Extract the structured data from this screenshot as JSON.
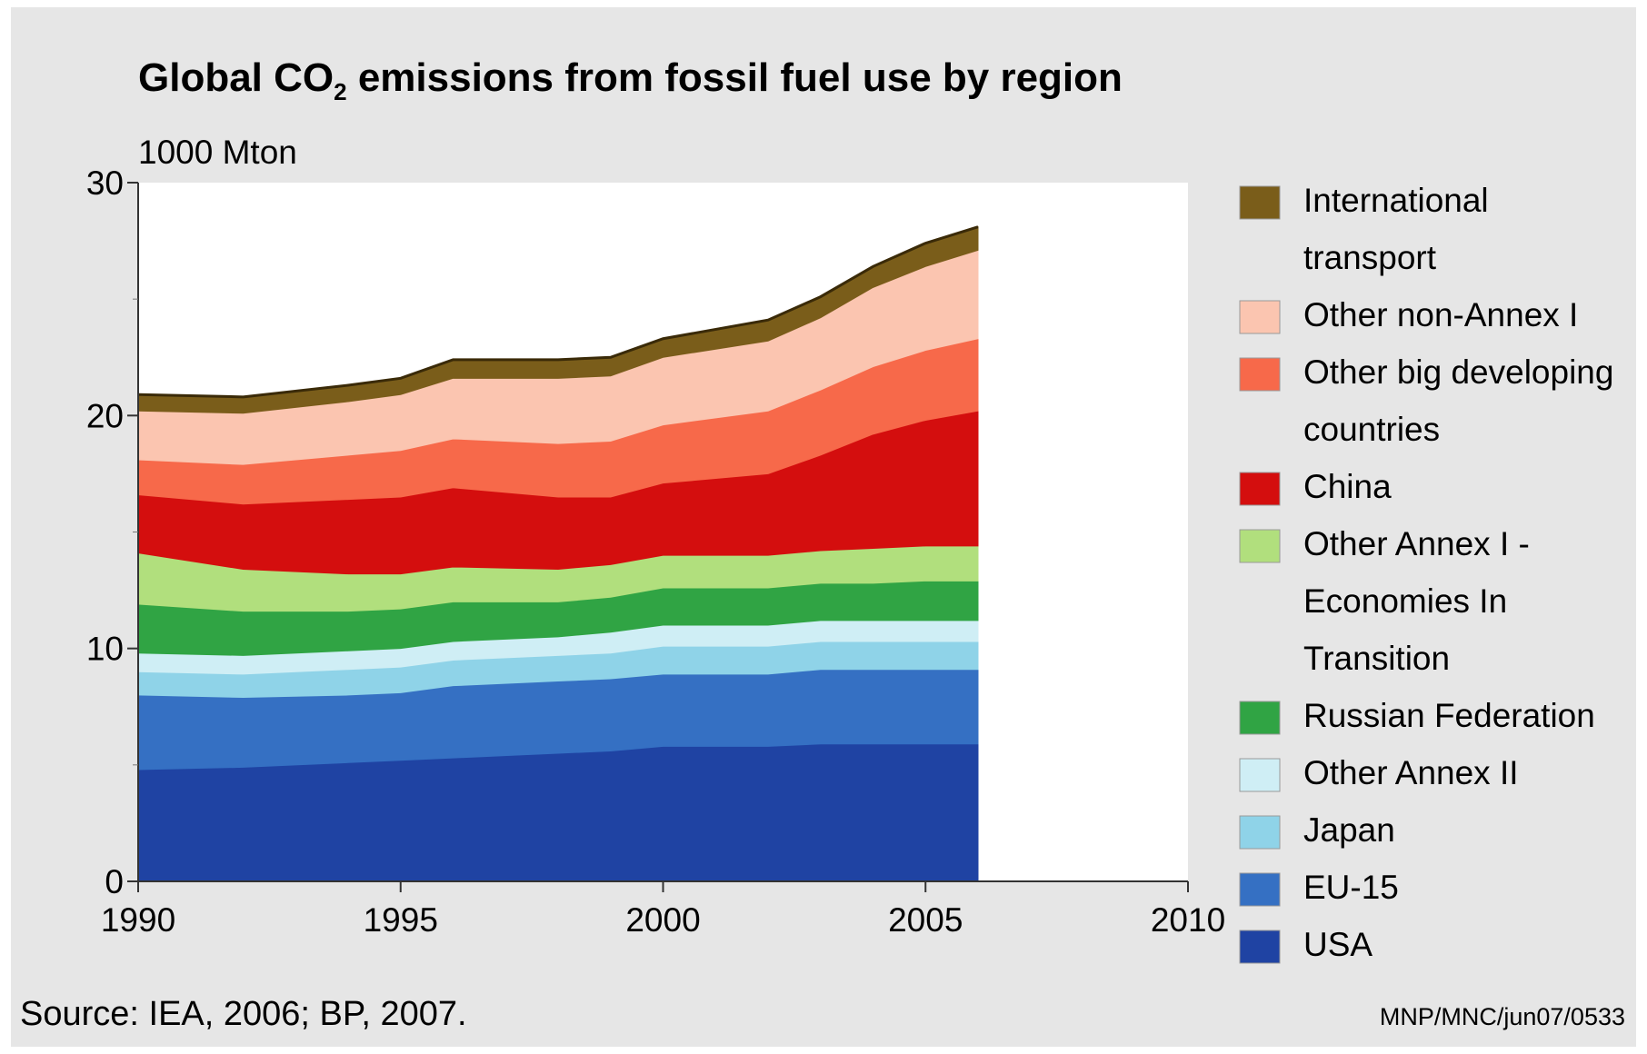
{
  "chart_data": {
    "type": "area",
    "stacked": true,
    "title": "Global CO",
    "title_subscript": "2",
    "title_rest": " emissions from fossil fuel use by region",
    "unit_label": "1000 Mton",
    "xlim": [
      1990,
      2010
    ],
    "ylim": [
      0,
      30
    ],
    "xticks": [
      1990,
      1995,
      2000,
      2005,
      2010
    ],
    "yticks": [
      0,
      10,
      20,
      30
    ],
    "grid": false,
    "legend_position": "right",
    "x": [
      1990,
      1992,
      1994,
      1995,
      1996,
      1998,
      1999,
      2000,
      2002,
      2003,
      2004,
      2005,
      2006
    ],
    "series": [
      {
        "name": "USA",
        "color": "#1f43a3",
        "values": [
          4.8,
          4.9,
          5.1,
          5.2,
          5.3,
          5.5,
          5.6,
          5.8,
          5.8,
          5.9,
          5.9,
          5.9,
          5.9
        ]
      },
      {
        "name": "EU-15",
        "color": "#3570c3",
        "values": [
          3.2,
          3.0,
          2.9,
          2.9,
          3.1,
          3.1,
          3.1,
          3.1,
          3.1,
          3.2,
          3.2,
          3.2,
          3.2
        ]
      },
      {
        "name": "Japan",
        "color": "#8fd3e8",
        "values": [
          1.0,
          1.0,
          1.1,
          1.1,
          1.1,
          1.1,
          1.1,
          1.2,
          1.2,
          1.2,
          1.2,
          1.2,
          1.2
        ]
      },
      {
        "name": "Other Annex II",
        "color": "#cfeef5",
        "values": [
          0.8,
          0.8,
          0.8,
          0.8,
          0.8,
          0.8,
          0.9,
          0.9,
          0.9,
          0.9,
          0.9,
          0.9,
          0.9
        ]
      },
      {
        "name": "Russian Federation",
        "color": "#30a444",
        "values": [
          2.1,
          1.9,
          1.7,
          1.7,
          1.7,
          1.5,
          1.5,
          1.6,
          1.6,
          1.6,
          1.6,
          1.7,
          1.7
        ]
      },
      {
        "name": "Other Annex I - Economies In Transition",
        "color": "#b1df7d",
        "values": [
          2.2,
          1.8,
          1.6,
          1.5,
          1.5,
          1.4,
          1.4,
          1.4,
          1.4,
          1.4,
          1.5,
          1.5,
          1.5
        ]
      },
      {
        "name": "China",
        "color": "#d40e0e",
        "values": [
          2.5,
          2.8,
          3.2,
          3.3,
          3.4,
          3.1,
          2.9,
          3.1,
          3.5,
          4.1,
          4.9,
          5.4,
          5.8
        ]
      },
      {
        "name": "Other big developing countries",
        "color": "#f7694a",
        "values": [
          1.5,
          1.7,
          1.9,
          2.0,
          2.1,
          2.3,
          2.4,
          2.5,
          2.7,
          2.8,
          2.9,
          3.0,
          3.1
        ]
      },
      {
        "name": "Other non-Annex I",
        "color": "#fbc5b0",
        "values": [
          2.1,
          2.2,
          2.3,
          2.4,
          2.6,
          2.8,
          2.8,
          2.9,
          3.0,
          3.1,
          3.4,
          3.6,
          3.8
        ]
      },
      {
        "name": "International transport",
        "color": "#7a5d1a",
        "values": [
          0.7,
          0.7,
          0.7,
          0.7,
          0.8,
          0.8,
          0.8,
          0.8,
          0.9,
          0.9,
          0.9,
          1.0,
          1.0
        ]
      }
    ],
    "legend": [
      {
        "lines": [
          "International",
          "transport"
        ],
        "color": "#7a5d1a"
      },
      {
        "lines": [
          "Other non-Annex I"
        ],
        "color": "#fbc5b0"
      },
      {
        "lines": [
          "Other big developing",
          "countries"
        ],
        "color": "#f7694a"
      },
      {
        "lines": [
          "China"
        ],
        "color": "#d40e0e"
      },
      {
        "lines": [
          "Other Annex I -",
          "Economies In",
          "Transition"
        ],
        "color": "#b1df7d"
      },
      {
        "lines": [
          "Russian Federation"
        ],
        "color": "#30a444"
      },
      {
        "lines": [
          "Other Annex II"
        ],
        "color": "#cfeef5"
      },
      {
        "lines": [
          "Japan"
        ],
        "color": "#8fd3e8"
      },
      {
        "lines": [
          "EU-15"
        ],
        "color": "#3570c3"
      },
      {
        "lines": [
          "USA"
        ],
        "color": "#1f43a3"
      }
    ],
    "source": "Source: IEA, 2006; BP, 2007.",
    "code": "MNP/MNC/jun07/0533"
  }
}
